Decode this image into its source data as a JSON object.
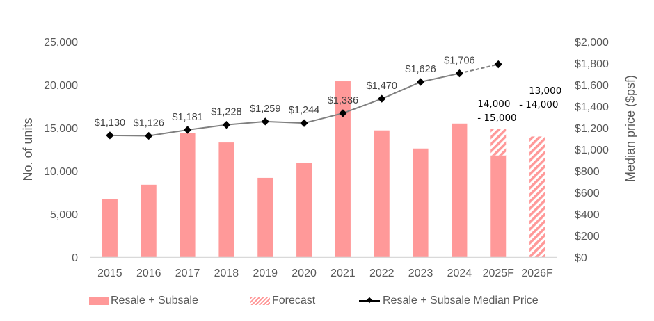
{
  "chart_data": {
    "type": "bar",
    "title": "",
    "categories": [
      "2015",
      "2016",
      "2017",
      "2018",
      "2019",
      "2020",
      "2021",
      "2022",
      "2023",
      "2024",
      "2025F",
      "2026F"
    ],
    "series": [
      {
        "name": "Resale + Subsale",
        "type": "bar",
        "axis": "left",
        "values": [
          6700,
          8400,
          14400,
          13300,
          9200,
          10900,
          20400,
          14700,
          12600,
          15500,
          11800,
          null
        ],
        "color": "#ff9999"
      },
      {
        "name": "Forecast",
        "type": "bar-stacked-hatched",
        "axis": "left",
        "values": [
          null,
          null,
          null,
          null,
          null,
          null,
          null,
          null,
          null,
          null,
          3100,
          14000
        ],
        "color": "#ff9999"
      },
      {
        "name": "Resale + Subsale Median Price",
        "type": "line",
        "axis": "right",
        "values": [
          1130,
          1126,
          1181,
          1228,
          1259,
          1244,
          1336,
          1470,
          1626,
          1706,
          1790,
          null
        ],
        "labels": [
          "$1,130",
          "$1,126",
          "$1,181",
          "$1,228",
          "$1,259",
          "$1,244",
          "$1,336",
          "$1,470",
          "$1,626",
          "$1,706",
          "",
          ""
        ],
        "forecast_from_index": 9,
        "color": "#7f7f7f"
      }
    ],
    "forecast_labels": [
      {
        "category": "2025F",
        "line1": "14,000",
        "line2": "- 15,000"
      },
      {
        "category": "2026F",
        "line1": "13,000",
        "line2": "- 14,000"
      }
    ],
    "ylabel": "No. of units",
    "ylabel_right": "Median price ($psf)",
    "ylim": [
      0,
      25000
    ],
    "yticks": [
      "0",
      "5,000",
      "10,000",
      "15,000",
      "20,000",
      "25,000"
    ],
    "ylim_right": [
      0,
      2000
    ],
    "yticks_right": [
      "$0",
      "$200",
      "$400",
      "$600",
      "$800",
      "$1,000",
      "$1,200",
      "$1,400",
      "$1,600",
      "$1,800",
      "$2,000"
    ],
    "grid": false,
    "legend": "bottom"
  },
  "legend": {
    "bar": "Resale + Subsale",
    "forecast": "Forecast",
    "line": "Resale + Subsale Median Price"
  }
}
